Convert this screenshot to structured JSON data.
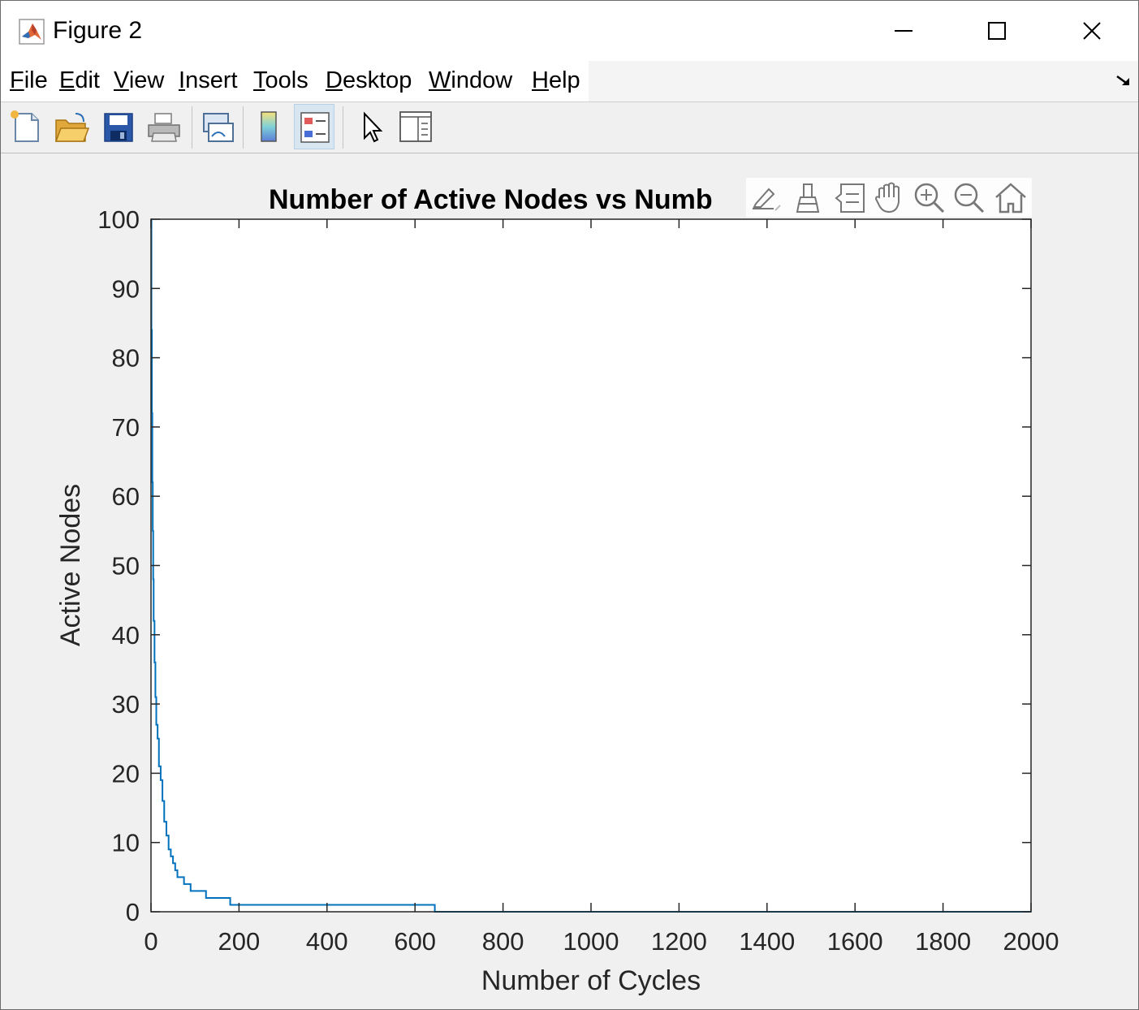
{
  "window": {
    "title": "Figure 2",
    "controls": {
      "minimize": "minimize",
      "maximize": "maximize",
      "close": "close"
    }
  },
  "menu": {
    "items": [
      {
        "u": "F",
        "rest": "ile"
      },
      {
        "u": "E",
        "rest": "dit"
      },
      {
        "u": "V",
        "rest": "iew"
      },
      {
        "u": "I",
        "rest": "nsert"
      },
      {
        "u": "T",
        "rest": "ools"
      },
      {
        "u": "D",
        "rest": "esktop"
      },
      {
        "u": "W",
        "rest": "indow"
      },
      {
        "u": "H",
        "rest": "elp"
      }
    ]
  },
  "toolbar": {
    "buttons": [
      "new-figure",
      "open-file",
      "save",
      "print",
      "link-plot",
      "insert-colorbar",
      "insert-legend",
      "edit-plot",
      "property-inspector"
    ],
    "active": "insert-legend"
  },
  "axes_toolbar": [
    "export",
    "brush",
    "data-tips",
    "pan",
    "zoom-in",
    "zoom-out",
    "restore-view"
  ],
  "chart_data": {
    "type": "line",
    "title": "Number of Active Nodes vs Numb",
    "xlabel": "Number of Cycles",
    "ylabel": "Active Nodes",
    "xlim": [
      0,
      2000
    ],
    "ylim": [
      0,
      100
    ],
    "xticks": [
      "0",
      "200",
      "400",
      "600",
      "800",
      "1000",
      "1200",
      "1400",
      "1600",
      "1800",
      "2000"
    ],
    "yticks": [
      "0",
      "10",
      "20",
      "30",
      "40",
      "50",
      "60",
      "70",
      "80",
      "90",
      "100"
    ],
    "grid": false,
    "series": [
      {
        "color": "#0072bd",
        "step": true,
        "x": [
          0,
          1,
          2,
          3,
          4,
          5,
          6,
          8,
          10,
          12,
          15,
          18,
          22,
          26,
          30,
          35,
          40,
          45,
          50,
          55,
          60,
          68,
          75,
          82,
          90,
          125,
          180,
          645,
          2000
        ],
        "y": [
          100,
          84,
          72,
          62,
          55,
          48,
          42,
          36,
          31,
          27,
          25,
          21,
          19,
          16,
          13,
          11,
          9,
          8,
          7,
          6,
          5,
          5,
          4,
          4,
          3,
          2,
          1,
          0,
          0
        ]
      }
    ]
  }
}
